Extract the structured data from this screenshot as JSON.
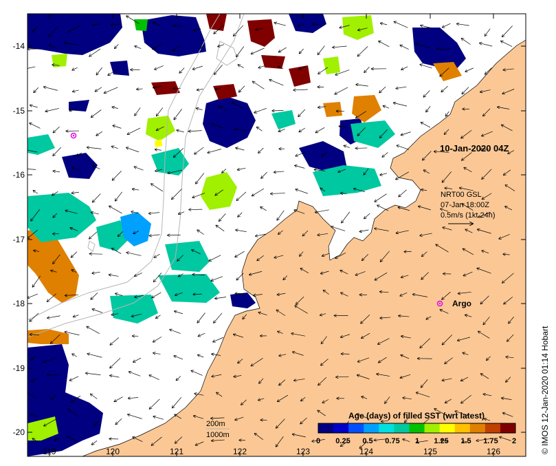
{
  "colors": {
    "land": "#fbc895",
    "ocean": "#ffffff",
    "bathymetry": "#b5b5b5",
    "argo": "#e600e6",
    "colorbar": [
      "#000080",
      "#0000c8",
      "#0050ff",
      "#00a0ff",
      "#00e0e0",
      "#00c8a0",
      "#00c000",
      "#a0f000",
      "#ffff00",
      "#ffc000",
      "#e08000",
      "#c04000",
      "#800000"
    ]
  },
  "axes": {
    "x_ticks": [
      "119",
      "120",
      "121",
      "122",
      "123",
      "124",
      "125",
      "126"
    ],
    "y_ticks": [
      "-14",
      "-15",
      "-16",
      "-17",
      "-18",
      "-19",
      "-20"
    ]
  },
  "labels": {
    "timestamp": "10-Jan-2020 04Z",
    "current_product": "NRT00 GSL",
    "current_time": "07-Jan 18:00Z",
    "current_scale": "0.5m/s (1kt 24h)",
    "argo": "Argo",
    "contour_200": "200m",
    "contour_1000": "1000m",
    "colorbar_title": "Age (days) of filled SST (wrt latest)",
    "colorbar_ticks": [
      "0",
      "0.25",
      "0.5",
      "0.75",
      "1",
      "1.25",
      "1.5",
      "1.75",
      "2"
    ],
    "credit": "© IMOS 12-Jan-2020 01:14 Hobart"
  }
}
